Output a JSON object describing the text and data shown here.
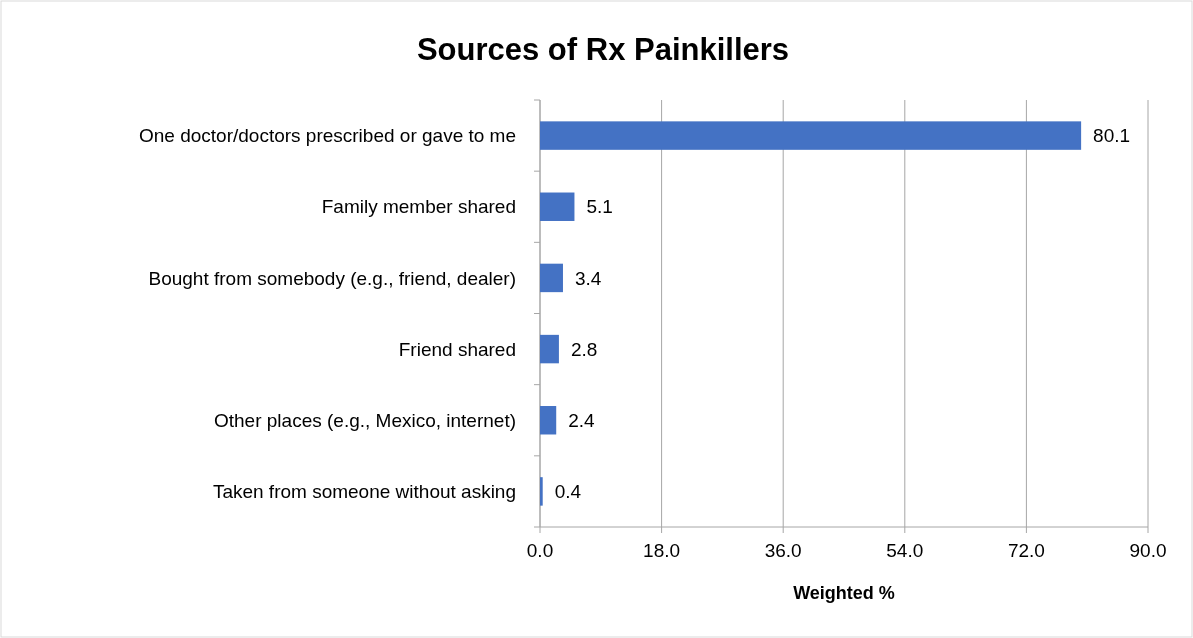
{
  "chart_data": {
    "type": "bar",
    "orientation": "horizontal",
    "title": "Sources of Rx Painkillers",
    "xlabel": "Weighted %",
    "categories": [
      "One doctor/doctors prescribed or gave to me",
      "Family member shared",
      "Bought from somebody (e.g., friend, dealer)",
      "Friend shared",
      "Other places (e.g., Mexico, internet)",
      "Taken from someone without asking"
    ],
    "values": [
      80.1,
      5.1,
      3.4,
      2.8,
      2.4,
      0.4
    ],
    "color": "#4472c4",
    "xlim": [
      0,
      90
    ],
    "xticks": [
      {
        "value": 0,
        "label": "0.0"
      },
      {
        "value": 18,
        "label": "18.0"
      },
      {
        "value": 36,
        "label": "36.0"
      },
      {
        "value": 54,
        "label": "54.0"
      },
      {
        "value": 72,
        "label": "72.0"
      },
      {
        "value": 90,
        "label": "90.0"
      }
    ],
    "grid": "x",
    "data_labels": true
  }
}
